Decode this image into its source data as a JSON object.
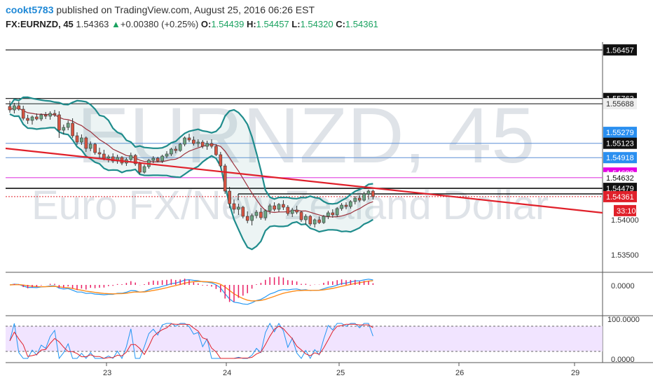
{
  "header": {
    "user": "cookt5783",
    "published_text": "published on TradingView.com, August 25, 2016 06:26 EST",
    "symbol": "FX:EURNZD, 45",
    "last": "1.54363",
    "change": "+0.00380 (+0.25%)",
    "o_label": "O:",
    "o": "1.54439",
    "h_label": "H:",
    "h": "1.54457",
    "l_label": "L:",
    "l": "1.54320",
    "c_label": "C:",
    "c": "1.54361",
    "arrow": "▲"
  },
  "watermark": {
    "line1": "EURNZD, 45",
    "line2": "Euro FX/New Zealand Dollar"
  },
  "colors": {
    "bb": "#1f8c8c",
    "ma": "#9c2f3a",
    "trend": "#e0202a",
    "macd": "#2196f3",
    "signal": "#ff8c1a",
    "hist": "#e91e63",
    "stoch_fill": "#eeddff"
  },
  "chart_data": {
    "type": "candlestick",
    "x_ticks": [
      "23",
      "24",
      "25",
      "26",
      "29"
    ],
    "y_ticks": [
      "1.54000",
      "1.53500"
    ],
    "price_labels": [
      {
        "text": "1.56457",
        "price": 1.56457,
        "style": "dark"
      },
      {
        "text": "1.55763",
        "price": 1.55763,
        "style": "dark"
      },
      {
        "text": "1.55688",
        "price": 1.55688,
        "style": "light"
      },
      {
        "text": "1.55279",
        "price": 1.55279,
        "style": "blue"
      },
      {
        "text": "1.55123",
        "price": 1.55123,
        "style": "dark"
      },
      {
        "text": "1.54918",
        "price": 1.54918,
        "style": "blue"
      },
      {
        "text": "1.54698",
        "price": 1.54698,
        "style": "magenta"
      },
      {
        "text": "1.54632",
        "price": 1.54632,
        "style": "plain"
      },
      {
        "text": "1.54479",
        "price": 1.54479,
        "style": "dark"
      },
      {
        "text": "1.54361",
        "price": 1.54361,
        "style": "red"
      }
    ],
    "countdown": "33:10",
    "macd_ticks": [
      "0.0000"
    ],
    "stoch_ticks": [
      "100.0000",
      "0.0000"
    ],
    "candles": [
      [
        1.5565,
        1.5573,
        1.5556,
        1.556
      ],
      [
        1.556,
        1.557,
        1.5555,
        1.5566
      ],
      [
        1.5566,
        1.5572,
        1.5559,
        1.5561
      ],
      [
        1.5561,
        1.5566,
        1.5545,
        1.5548
      ],
      [
        1.5548,
        1.5553,
        1.554,
        1.5545
      ],
      [
        1.5545,
        1.5552,
        1.5539,
        1.555
      ],
      [
        1.555,
        1.5555,
        1.5545,
        1.5547
      ],
      [
        1.5547,
        1.5555,
        1.5544,
        1.5553
      ],
      [
        1.5553,
        1.5557,
        1.5547,
        1.5551
      ],
      [
        1.5551,
        1.5558,
        1.5546,
        1.5555
      ],
      [
        1.5555,
        1.556,
        1.555,
        1.5553
      ],
      [
        1.5553,
        1.5558,
        1.552,
        1.5531
      ],
      [
        1.5531,
        1.5539,
        1.5525,
        1.5535
      ],
      [
        1.5535,
        1.5545,
        1.5531,
        1.5541
      ],
      [
        1.5541,
        1.5548,
        1.552,
        1.5523
      ],
      [
        1.5523,
        1.5528,
        1.551,
        1.5514
      ],
      [
        1.5514,
        1.5525,
        1.551,
        1.552
      ],
      [
        1.552,
        1.5522,
        1.55,
        1.5505
      ],
      [
        1.5505,
        1.5515,
        1.5501,
        1.5511
      ],
      [
        1.5511,
        1.5513,
        1.5496,
        1.5499
      ],
      [
        1.5499,
        1.5506,
        1.5491,
        1.5497
      ],
      [
        1.5497,
        1.5503,
        1.5488,
        1.5491
      ],
      [
        1.5491,
        1.5496,
        1.5485,
        1.5493
      ],
      [
        1.5493,
        1.5498,
        1.5484,
        1.5487
      ],
      [
        1.5487,
        1.5496,
        1.5483,
        1.5492
      ],
      [
        1.5492,
        1.5494,
        1.5481,
        1.5484
      ],
      [
        1.5484,
        1.5492,
        1.548,
        1.5489
      ],
      [
        1.5489,
        1.5499,
        1.5486,
        1.5495
      ],
      [
        1.5495,
        1.5497,
        1.548,
        1.5483
      ],
      [
        1.5483,
        1.5486,
        1.5468,
        1.5471
      ],
      [
        1.5471,
        1.5482,
        1.5469,
        1.5479
      ],
      [
        1.5479,
        1.549,
        1.5476,
        1.5488
      ],
      [
        1.5488,
        1.5494,
        1.5484,
        1.5491
      ],
      [
        1.5491,
        1.5493,
        1.5485,
        1.5487
      ],
      [
        1.5487,
        1.5496,
        1.5484,
        1.5494
      ],
      [
        1.5494,
        1.5501,
        1.5491,
        1.5497
      ],
      [
        1.5497,
        1.5506,
        1.5494,
        1.5504
      ],
      [
        1.5504,
        1.5508,
        1.5498,
        1.5502
      ],
      [
        1.5502,
        1.5513,
        1.55,
        1.5511
      ],
      [
        1.5511,
        1.5522,
        1.5508,
        1.552
      ],
      [
        1.552,
        1.5526,
        1.5514,
        1.5517
      ],
      [
        1.5517,
        1.5522,
        1.5509,
        1.5512
      ],
      [
        1.5512,
        1.5518,
        1.5507,
        1.5514
      ],
      [
        1.5514,
        1.5517,
        1.5505,
        1.5508
      ],
      [
        1.5508,
        1.5516,
        1.5503,
        1.5512
      ],
      [
        1.5512,
        1.5518,
        1.5505,
        1.5508
      ],
      [
        1.5508,
        1.5511,
        1.5494,
        1.5496
      ],
      [
        1.5496,
        1.55,
        1.5478,
        1.548
      ],
      [
        1.548,
        1.5483,
        1.544,
        1.5444
      ],
      [
        1.5444,
        1.545,
        1.542,
        1.5426
      ],
      [
        1.5426,
        1.5432,
        1.5412,
        1.5418
      ],
      [
        1.5418,
        1.5426,
        1.541,
        1.5421
      ],
      [
        1.5421,
        1.5423,
        1.5405,
        1.5408
      ],
      [
        1.5408,
        1.5415,
        1.5398,
        1.5402
      ],
      [
        1.5402,
        1.5412,
        1.5395,
        1.5409
      ],
      [
        1.5409,
        1.5417,
        1.5405,
        1.5414
      ],
      [
        1.5414,
        1.542,
        1.5403,
        1.5406
      ],
      [
        1.5406,
        1.5418,
        1.5402,
        1.5416
      ],
      [
        1.5416,
        1.5426,
        1.5411,
        1.5423
      ],
      [
        1.5423,
        1.5428,
        1.5415,
        1.5418
      ],
      [
        1.5418,
        1.5427,
        1.5414,
        1.5425
      ],
      [
        1.5425,
        1.5431,
        1.5417,
        1.5421
      ],
      [
        1.5421,
        1.5424,
        1.5409,
        1.5412
      ],
      [
        1.5412,
        1.542,
        1.5407,
        1.5417
      ],
      [
        1.5417,
        1.5423,
        1.5411,
        1.5414
      ],
      [
        1.5414,
        1.5416,
        1.54,
        1.5403
      ],
      [
        1.5403,
        1.5411,
        1.5396,
        1.5408
      ],
      [
        1.5408,
        1.541,
        1.5394,
        1.5397
      ],
      [
        1.5397,
        1.5405,
        1.5392,
        1.5403
      ],
      [
        1.5403,
        1.5408,
        1.5397,
        1.5399
      ],
      [
        1.5399,
        1.541,
        1.5397,
        1.5408
      ],
      [
        1.5408,
        1.5416,
        1.5404,
        1.5413
      ],
      [
        1.5413,
        1.5418,
        1.5406,
        1.541
      ],
      [
        1.541,
        1.5421,
        1.5407,
        1.5419
      ],
      [
        1.5419,
        1.5427,
        1.5416,
        1.5424
      ],
      [
        1.5424,
        1.5428,
        1.5418,
        1.5422
      ],
      [
        1.5422,
        1.5431,
        1.5419,
        1.5429
      ],
      [
        1.5429,
        1.5437,
        1.5425,
        1.5434
      ],
      [
        1.5434,
        1.5438,
        1.5428,
        1.5431
      ],
      [
        1.5431,
        1.5443,
        1.5429,
        1.544
      ],
      [
        1.544,
        1.5446,
        1.5432,
        1.5444
      ],
      [
        1.5444,
        1.5446,
        1.5432,
        1.5436
      ]
    ]
  }
}
